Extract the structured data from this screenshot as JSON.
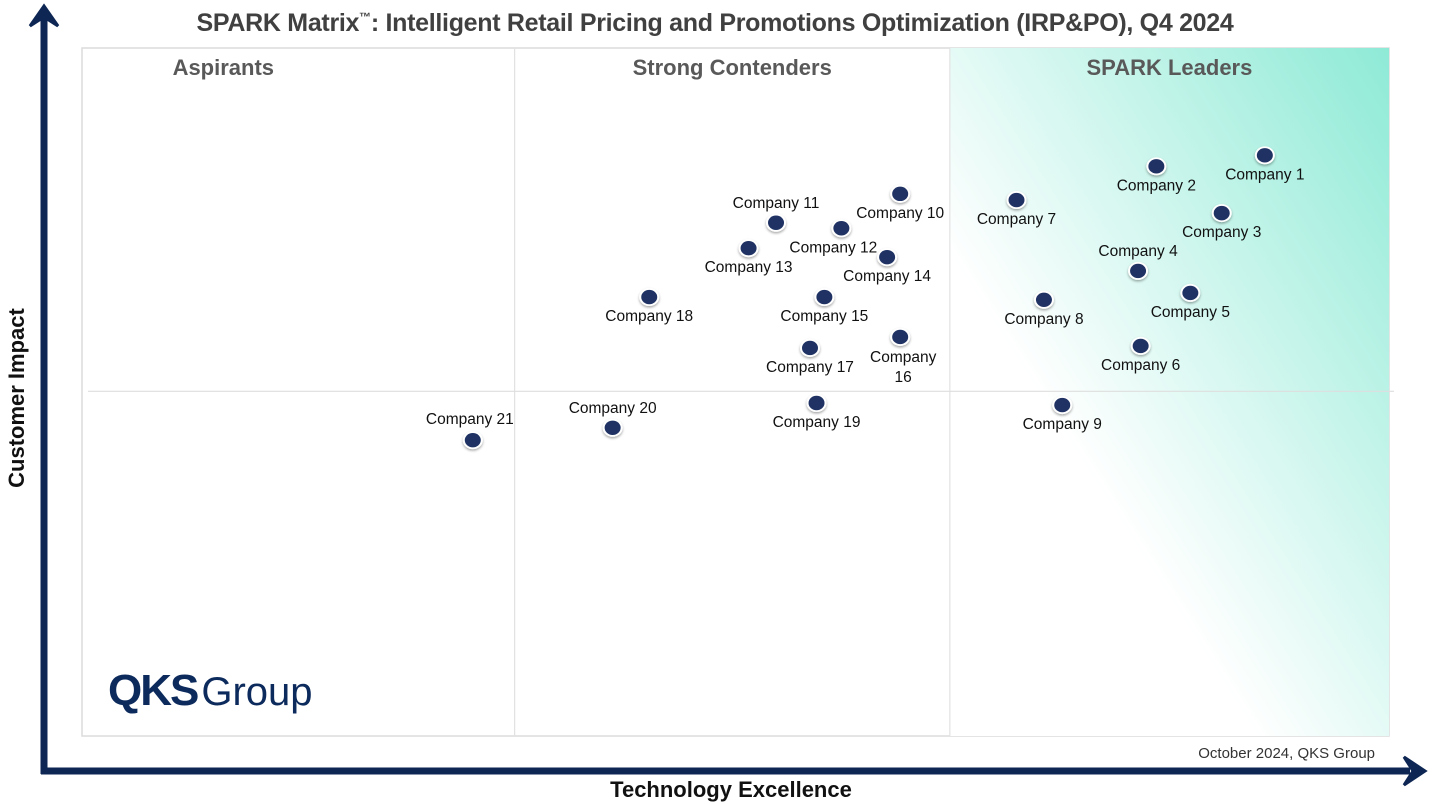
{
  "chart_data": {
    "type": "scatter",
    "title": "SPARK Matrix",
    "title_tm": "™",
    "title_rest": ": Intelligent Retail Pricing and Promotions Optimization (IRP&PO), Q4 2024",
    "xlabel": "Technology Excellence",
    "ylabel": "Customer Impact",
    "xlim": [
      0,
      100
    ],
    "ylim": [
      0,
      100
    ],
    "grid": false,
    "quadrant_dividers": {
      "x": [
        33.1,
        66.4
      ],
      "y": 50.1
    },
    "quadrants": [
      {
        "label": "Aspirants"
      },
      {
        "label": "Strong Contenders"
      },
      {
        "label": "SPARK Leaders"
      }
    ],
    "point_color": "#1f3263",
    "leader_gradient_color": "#8eead6",
    "axis_color": "#0e2653",
    "points": [
      {
        "name": "Company 1",
        "x": 90.5,
        "y": 84.4,
        "label_pos": "below"
      },
      {
        "name": "Company 2",
        "x": 82.2,
        "y": 82.8,
        "label_pos": "below"
      },
      {
        "name": "Company 3",
        "x": 87.2,
        "y": 76.0,
        "label_pos": "below"
      },
      {
        "name": "Company 4",
        "x": 80.8,
        "y": 67.6,
        "label_pos": "above"
      },
      {
        "name": "Company 5",
        "x": 84.8,
        "y": 64.4,
        "label_pos": "below"
      },
      {
        "name": "Company 6",
        "x": 81.0,
        "y": 56.7,
        "label_pos": "below"
      },
      {
        "name": "Company 7",
        "x": 71.5,
        "y": 77.9,
        "label_pos": "below"
      },
      {
        "name": "Company 8",
        "x": 73.6,
        "y": 63.4,
        "label_pos": "below"
      },
      {
        "name": "Company 9",
        "x": 75.0,
        "y": 48.1,
        "label_pos": "below"
      },
      {
        "name": "Company 10",
        "x": 62.6,
        "y": 78.8,
        "label_pos": "below"
      },
      {
        "name": "Company 11",
        "x": 53.1,
        "y": 74.6,
        "label_pos": "above"
      },
      {
        "name": "Company 12",
        "x": 58.1,
        "y": 73.8,
        "label_pos": "below-left"
      },
      {
        "name": "Company 13",
        "x": 51.0,
        "y": 70.9,
        "label_pos": "below"
      },
      {
        "name": "Company 14",
        "x": 61.6,
        "y": 69.6,
        "label_pos": "below"
      },
      {
        "name": "Company 15",
        "x": 56.8,
        "y": 63.8,
        "label_pos": "below"
      },
      {
        "name": "Company 16",
        "x": 62.6,
        "y": 58.0,
        "label_pos": "below-wrap"
      },
      {
        "name": "Company 17",
        "x": 55.7,
        "y": 56.4,
        "label_pos": "below"
      },
      {
        "name": "Company 18",
        "x": 43.4,
        "y": 63.8,
        "label_pos": "below"
      },
      {
        "name": "Company 19",
        "x": 56.2,
        "y": 48.4,
        "label_pos": "below"
      },
      {
        "name": "Company 20",
        "x": 40.6,
        "y": 44.8,
        "label_pos": "above"
      },
      {
        "name": "Company 21",
        "x": 29.9,
        "y": 43.0,
        "label_pos": "above-right"
      }
    ],
    "footer": "October 2024, QKS Group"
  },
  "logo": {
    "bold": "QKS",
    "regular": "Group"
  }
}
